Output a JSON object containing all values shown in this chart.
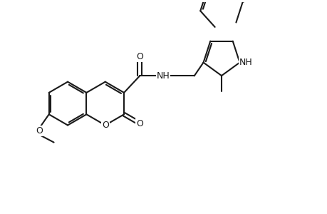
{
  "bg_color": "#ffffff",
  "line_color": "#1a1a1a",
  "line_width": 1.5,
  "fig_width": 4.6,
  "fig_height": 3.0,
  "dpi": 100,
  "xlim": [
    0,
    9.2
  ],
  "ylim": [
    0,
    6.0
  ]
}
